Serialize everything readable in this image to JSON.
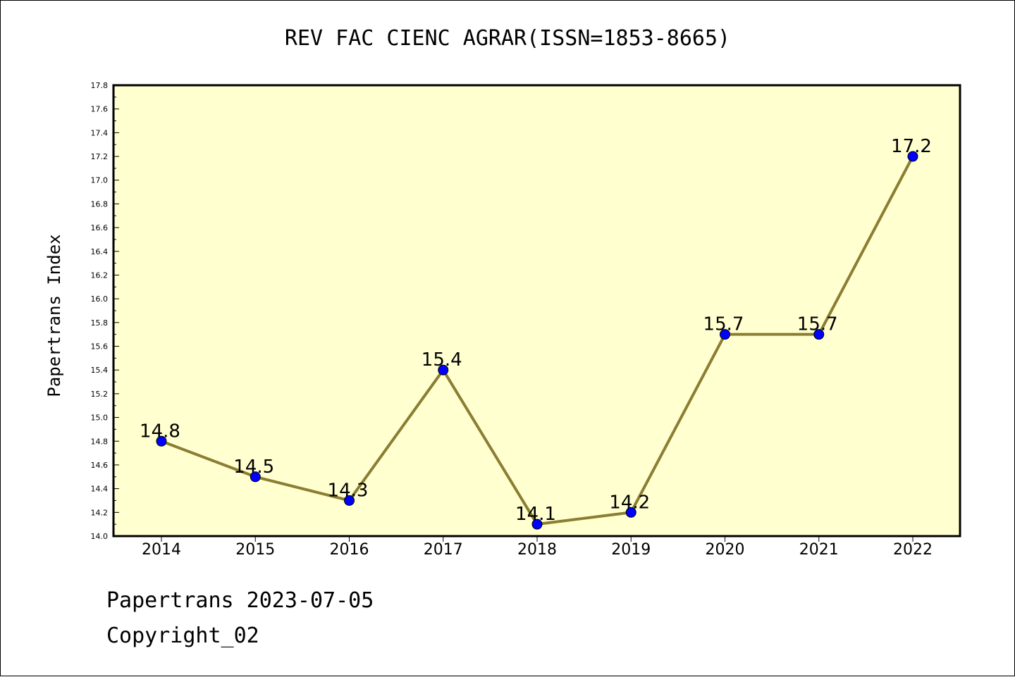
{
  "title": "REV FAC CIENC AGRAR(ISSN=1853-8665)",
  "footer": {
    "line1": "Papertrans 2023-07-05",
    "line2": "Copyright_02"
  },
  "chart_data": {
    "type": "line",
    "title": "REV FAC CIENC AGRAR(ISSN=1853-8665)",
    "xlabel": "",
    "ylabel": "Papertrans Index",
    "categories": [
      "2014",
      "2015",
      "2016",
      "2017",
      "2018",
      "2019",
      "2020",
      "2021",
      "2022"
    ],
    "series": [
      {
        "values": [
          14.8,
          14.5,
          14.3,
          15.4,
          14.1,
          14.2,
          15.7,
          15.7,
          17.2
        ],
        "labels": [
          "14.8",
          "14.5",
          "14.3",
          "15.4",
          "14.1",
          "14.2",
          "15.7",
          "15.7",
          "17.2"
        ]
      }
    ],
    "ylim": [
      14.0,
      17.8
    ],
    "yticks": [
      "14.0",
      "14.2",
      "14.4",
      "14.6",
      "14.8",
      "15.0",
      "15.2",
      "15.4",
      "15.6",
      "15.8",
      "16.0",
      "16.2",
      "16.4",
      "16.6",
      "16.8",
      "17.0",
      "17.2",
      "17.4",
      "17.6",
      "17.8"
    ],
    "grid": false,
    "legend": "none",
    "colors": {
      "plot_background": "#ffffd0",
      "line": "#8b7d32",
      "marker": "#0000ff",
      "axes": "#000000"
    }
  }
}
